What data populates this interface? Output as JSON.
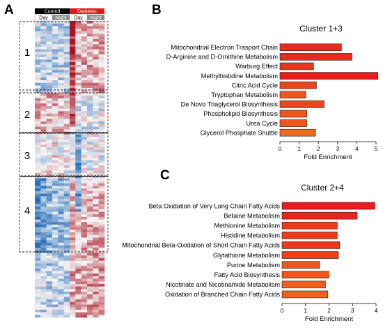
{
  "panels": {
    "a": "A",
    "b": "B",
    "c": "C"
  },
  "heatmap": {
    "groups": [
      {
        "name": "Control",
        "color": "#000000"
      },
      {
        "name": "Diabetes",
        "color": "#e01b1b"
      }
    ],
    "conditions": [
      "Day",
      "Night",
      "Day",
      "Night"
    ],
    "cluster_labels": [
      "1",
      "2",
      "3",
      "4"
    ]
  },
  "chart_data": [
    {
      "type": "bar",
      "orientation": "horizontal",
      "title": "Cluster 1+3",
      "xlabel": "Fold Enrichment",
      "xlim": [
        0,
        5
      ],
      "xticks": [
        0,
        1,
        2,
        3,
        4,
        5
      ],
      "categories": [
        "Mitochondrial Electron Trasport Chain",
        "D-Arginine and D-Ornithine Metabolism",
        "Warburg Effect",
        "Methylhistidine Metabolism",
        "Citric Acid Cycle",
        "Tryptophan Metabolism",
        "De Novo Triaglycerol Biosynthesis",
        "Phospholipid Biosynthesis",
        "Urea Cycle",
        "Glycerol Phosphate Shuttle"
      ],
      "values": [
        3.2,
        3.75,
        1.75,
        5.1,
        1.9,
        1.35,
        2.3,
        1.4,
        1.4,
        1.85
      ],
      "bar_colors": [
        "#e82a1c",
        "#e82a1c",
        "#e8351c",
        "#e81c1c",
        "#ec451c",
        "#ee561c",
        "#ec451c",
        "#ee561c",
        "#ee561c",
        "#f06a1c"
      ]
    },
    {
      "type": "bar",
      "orientation": "horizontal",
      "title": "Cluster 2+4",
      "xlabel": "Fold Enrichment",
      "xlim": [
        0,
        4
      ],
      "xticks": [
        0,
        1,
        2,
        3,
        4
      ],
      "categories": [
        "Beta Oxidation of Very Long Chain Fatty Acids",
        "Betaine Metabolism",
        "Methionine Metabolism",
        "Histidine Metabolism",
        "Mitochondrial Beta-Oxidation of Short Chain Fatty Acids",
        "Glytathione Metabolism",
        "Purine Metabolism",
        "Fatty Acid Biosynthesis",
        "Nicotinate and Nicotinamide Metabolism",
        "Oxidation of Branched Chain Fatty Acids"
      ],
      "values": [
        3.95,
        3.2,
        2.35,
        2.35,
        2.45,
        2.4,
        1.6,
        2.0,
        1.85,
        1.95
      ],
      "bar_colors": [
        "#e81c1c",
        "#e8251c",
        "#ea3a1c",
        "#ea3a1c",
        "#ea3a1c",
        "#ec421c",
        "#ee561c",
        "#ee561c",
        "#f0601c",
        "#f0601c"
      ]
    }
  ]
}
